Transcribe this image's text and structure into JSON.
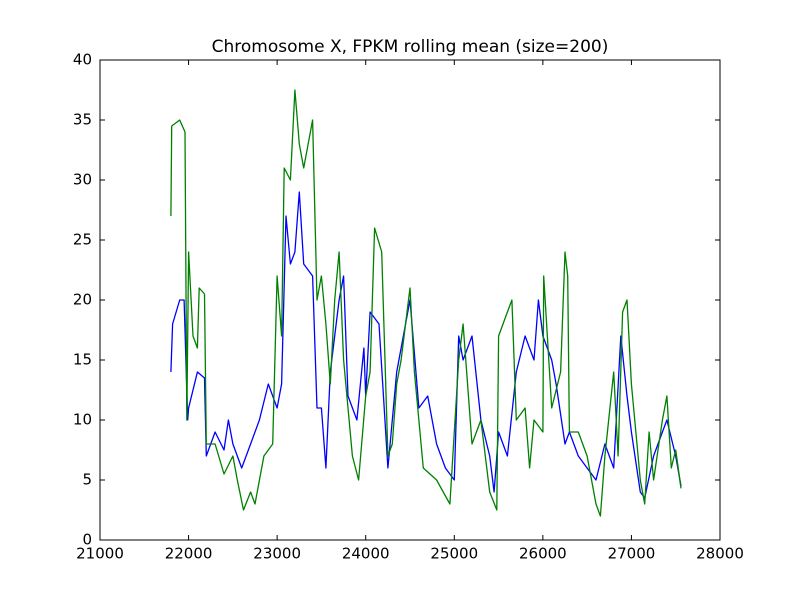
{
  "chart_data": {
    "type": "line",
    "title": "Chromosome X, FPKM rolling mean (size=200)",
    "xlim": [
      21000,
      28000
    ],
    "xticks": [
      21000,
      22000,
      23000,
      24000,
      25000,
      26000,
      27000,
      28000
    ],
    "ylim": [
      0,
      40
    ],
    "yticks": [
      0,
      5,
      10,
      15,
      20,
      25,
      30,
      35,
      40
    ],
    "series": [
      {
        "color": "#0000ff",
        "x": [
          21800,
          21820,
          21900,
          21950,
          21990,
          22000,
          22100,
          22180,
          22200,
          22300,
          22400,
          22450,
          22500,
          22600,
          22700,
          22800,
          22900,
          23000,
          23050,
          23100,
          23150,
          23200,
          23250,
          23300,
          23400,
          23450,
          23500,
          23550,
          23600,
          23700,
          23750,
          23800,
          23900,
          23980,
          24000,
          24050,
          24150,
          24250,
          24350,
          24500,
          24600,
          24700,
          24800,
          24900,
          25000,
          25050,
          25100,
          25200,
          25300,
          25400,
          25450,
          25500,
          25600,
          25700,
          25800,
          25900,
          25950,
          26000,
          26100,
          26150,
          26250,
          26300,
          26400,
          26500,
          26600,
          26700,
          26800,
          26880,
          26950,
          27000,
          27100,
          27150,
          27250,
          27350,
          27400,
          27500,
          27560
        ],
        "values": [
          14,
          18,
          20,
          20,
          10,
          11,
          14,
          13.5,
          7,
          9,
          7.5,
          10,
          8,
          6,
          8,
          10,
          13,
          11,
          13,
          27,
          23,
          24,
          29,
          23,
          22,
          11,
          11,
          6,
          14,
          20,
          22,
          12,
          10,
          16,
          12,
          19,
          18,
          6,
          14,
          20,
          11,
          12,
          8,
          6,
          5,
          17,
          15,
          17,
          10,
          7,
          4,
          9,
          7,
          14,
          17,
          15,
          20,
          17,
          15,
          13,
          8,
          9,
          7,
          6,
          5,
          8,
          6,
          17,
          12,
          9,
          4,
          3.5,
          7,
          9,
          10,
          7,
          4.5
        ]
      },
      {
        "color": "#008000",
        "x": [
          21800,
          21810,
          21900,
          21960,
          21980,
          22000,
          22050,
          22100,
          22120,
          22180,
          22200,
          22300,
          22400,
          22500,
          22550,
          22620,
          22700,
          22750,
          22850,
          22950,
          23000,
          23050,
          23080,
          23150,
          23200,
          23250,
          23300,
          23400,
          23450,
          23500,
          23550,
          23600,
          23650,
          23700,
          23750,
          23850,
          23920,
          24000,
          24050,
          24100,
          24180,
          24250,
          24300,
          24350,
          24400,
          24500,
          24550,
          24650,
          24800,
          24950,
          25050,
          25100,
          25200,
          25300,
          25400,
          25480,
          25500,
          25600,
          25650,
          25700,
          25800,
          25850,
          25900,
          26000,
          26010,
          26100,
          26200,
          26250,
          26280,
          26300,
          26400,
          26500,
          26600,
          26650,
          26700,
          26800,
          26850,
          26900,
          26950,
          27000,
          27100,
          27150,
          27200,
          27250,
          27350,
          27400,
          27450,
          27500,
          27560
        ],
        "values": [
          27,
          34.5,
          35,
          34,
          10,
          24,
          17,
          16,
          21,
          20.5,
          8,
          8,
          5.5,
          7,
          5,
          2.5,
          4,
          3,
          7,
          8,
          22,
          17,
          31,
          30,
          37.5,
          33,
          31,
          35,
          20,
          22,
          18,
          13,
          20,
          24,
          15,
          7,
          5,
          12,
          14,
          26,
          24,
          7,
          8,
          13,
          15,
          21,
          14,
          6,
          5,
          3,
          15,
          18,
          8,
          10,
          4,
          2.5,
          17,
          19,
          20,
          10,
          11,
          6,
          10,
          9,
          22,
          11,
          14,
          24,
          22,
          9,
          9,
          7,
          3,
          2,
          7,
          14,
          7,
          19,
          20,
          13,
          5,
          3,
          9,
          5,
          10,
          12,
          6,
          7.5,
          4.3
        ]
      }
    ]
  }
}
